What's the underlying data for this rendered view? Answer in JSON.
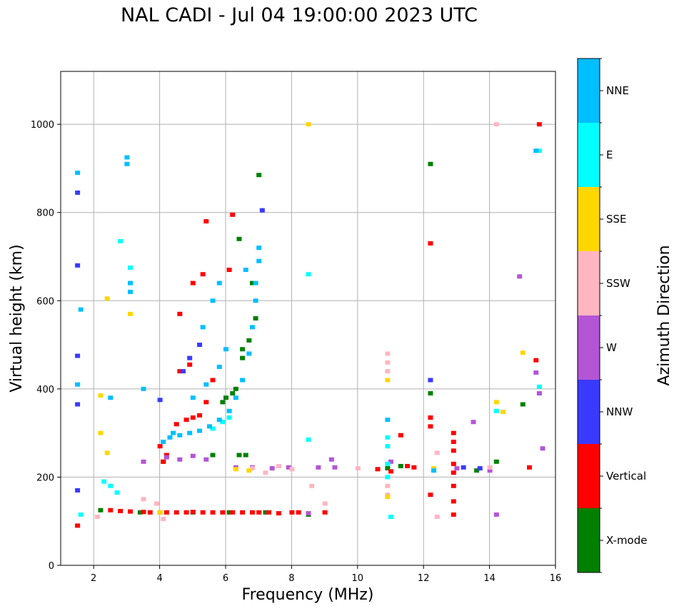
{
  "chart_data": {
    "type": "scatter",
    "title": "NAL CADI - Jul 04 19:00:00 2023 UTC",
    "xlabel": "Frequency (MHz)",
    "ylabel": "Virtual height (km)",
    "xlim": [
      1,
      16
    ],
    "ylim": [
      0,
      1120
    ],
    "xticks": [
      2,
      4,
      6,
      8,
      10,
      12,
      14,
      16
    ],
    "yticks": [
      0,
      200,
      400,
      600,
      800,
      1000
    ],
    "grid": true,
    "colorbar": {
      "label": "Azimuth Direction",
      "categories": [
        {
          "name": "X-mode",
          "color": "#008000"
        },
        {
          "name": "Vertical",
          "color": "#ff0000"
        },
        {
          "name": "NNW",
          "color": "#3a3aff"
        },
        {
          "name": "W",
          "color": "#b455d6"
        },
        {
          "name": "SSW",
          "color": "#ffb6c1"
        },
        {
          "name": "SSE",
          "color": "#ffd700"
        },
        {
          "name": "E",
          "color": "#00ffff"
        },
        {
          "name": "NNE",
          "color": "#00bfff"
        }
      ]
    },
    "series": [
      {
        "name": "X-mode",
        "points": [
          [
            2.2,
            125
          ],
          [
            3.4,
            120
          ],
          [
            4.1,
            235
          ],
          [
            5.0,
            120
          ],
          [
            5.6,
            250
          ],
          [
            5.9,
            370
          ],
          [
            6.0,
            380
          ],
          [
            6.1,
            120
          ],
          [
            6.2,
            390
          ],
          [
            6.3,
            400
          ],
          [
            6.4,
            250
          ],
          [
            6.4,
            740
          ],
          [
            6.5,
            490
          ],
          [
            6.5,
            470
          ],
          [
            6.6,
            250
          ],
          [
            6.7,
            510
          ],
          [
            6.8,
            640
          ],
          [
            6.9,
            560
          ],
          [
            7.0,
            885
          ],
          [
            7.2,
            120
          ],
          [
            8.5,
            115
          ],
          [
            10.9,
            220
          ],
          [
            11.3,
            225
          ],
          [
            12.2,
            910
          ],
          [
            12.2,
            390
          ],
          [
            13.6,
            215
          ],
          [
            14.2,
            235
          ],
          [
            15.0,
            365
          ]
        ]
      },
      {
        "name": "Vertical",
        "points": [
          [
            1.5,
            90
          ],
          [
            2.5,
            125
          ],
          [
            2.8,
            123
          ],
          [
            3.1,
            122
          ],
          [
            3.5,
            121
          ],
          [
            3.7,
            120
          ],
          [
            4.0,
            120
          ],
          [
            4.2,
            120
          ],
          [
            4.5,
            120
          ],
          [
            4.8,
            120
          ],
          [
            5.0,
            121
          ],
          [
            5.3,
            120
          ],
          [
            5.6,
            120
          ],
          [
            5.9,
            120
          ],
          [
            6.2,
            120
          ],
          [
            6.5,
            120
          ],
          [
            6.8,
            120
          ],
          [
            7.0,
            120
          ],
          [
            7.3,
            120
          ],
          [
            7.6,
            118
          ],
          [
            8.0,
            120
          ],
          [
            8.2,
            120
          ],
          [
            9.0,
            120
          ],
          [
            4.1,
            235
          ],
          [
            4.2,
            250
          ],
          [
            4.0,
            270
          ],
          [
            4.5,
            320
          ],
          [
            4.8,
            330
          ],
          [
            5.0,
            335
          ],
          [
            5.2,
            340
          ],
          [
            5.4,
            370
          ],
          [
            5.6,
            420
          ],
          [
            4.6,
            440
          ],
          [
            4.9,
            455
          ],
          [
            4.6,
            570
          ],
          [
            5.0,
            640
          ],
          [
            5.3,
            660
          ],
          [
            5.4,
            780
          ],
          [
            6.2,
            795
          ],
          [
            6.1,
            670
          ],
          [
            10.6,
            218
          ],
          [
            11.0,
            213
          ],
          [
            11.5,
            225
          ],
          [
            11.7,
            222
          ],
          [
            11.3,
            295
          ],
          [
            12.2,
            315
          ],
          [
            12.2,
            335
          ],
          [
            12.2,
            730
          ],
          [
            12.2,
            160
          ],
          [
            12.9,
            300
          ],
          [
            12.9,
            280
          ],
          [
            12.9,
            260
          ],
          [
            12.9,
            230
          ],
          [
            12.9,
            210
          ],
          [
            12.9,
            180
          ],
          [
            12.9,
            145
          ],
          [
            12.9,
            115
          ],
          [
            15.2,
            222
          ],
          [
            15.4,
            465
          ],
          [
            15.5,
            1000
          ]
        ]
      },
      {
        "name": "NNW",
        "points": [
          [
            1.5,
            170
          ],
          [
            1.5,
            365
          ],
          [
            1.5,
            475
          ],
          [
            1.5,
            680
          ],
          [
            1.5,
            845
          ],
          [
            4.0,
            375
          ],
          [
            4.7,
            440
          ],
          [
            4.9,
            470
          ],
          [
            5.2,
            500
          ],
          [
            7.1,
            805
          ],
          [
            12.2,
            420
          ],
          [
            13.2,
            222
          ],
          [
            13.7,
            220
          ]
        ]
      },
      {
        "name": "W",
        "points": [
          [
            3.5,
            235
          ],
          [
            4.2,
            245
          ],
          [
            4.6,
            240
          ],
          [
            5.0,
            248
          ],
          [
            5.4,
            240
          ],
          [
            6.3,
            222
          ],
          [
            6.8,
            222
          ],
          [
            7.4,
            220
          ],
          [
            7.9,
            222
          ],
          [
            8.5,
            118
          ],
          [
            8.8,
            222
          ],
          [
            9.2,
            240
          ],
          [
            9.3,
            222
          ],
          [
            11.0,
            235
          ],
          [
            13.0,
            220
          ],
          [
            13.5,
            325
          ],
          [
            14.0,
            215
          ],
          [
            14.2,
            115
          ],
          [
            14.9,
            655
          ],
          [
            15.4,
            437
          ],
          [
            15.5,
            390
          ],
          [
            15.6,
            265
          ]
        ]
      },
      {
        "name": "SSW",
        "points": [
          [
            2.1,
            110
          ],
          [
            3.5,
            150
          ],
          [
            3.9,
            140
          ],
          [
            4.1,
            105
          ],
          [
            6.8,
            220
          ],
          [
            7.2,
            210
          ],
          [
            7.6,
            225
          ],
          [
            8.0,
            218
          ],
          [
            8.6,
            180
          ],
          [
            9.0,
            140
          ],
          [
            10.0,
            220
          ],
          [
            10.9,
            480
          ],
          [
            10.9,
            460
          ],
          [
            10.9,
            440
          ],
          [
            10.9,
            180
          ],
          [
            10.9,
            160
          ],
          [
            12.4,
            255
          ],
          [
            12.4,
            110
          ],
          [
            14.0,
            222
          ],
          [
            14.2,
            1000
          ]
        ]
      },
      {
        "name": "SSE",
        "points": [
          [
            2.2,
            385
          ],
          [
            2.2,
            300
          ],
          [
            2.4,
            255
          ],
          [
            2.4,
            605
          ],
          [
            3.1,
            570
          ],
          [
            4.0,
            120
          ],
          [
            6.3,
            218
          ],
          [
            6.7,
            215
          ],
          [
            8.5,
            1000
          ],
          [
            10.9,
            420
          ],
          [
            10.9,
            155
          ],
          [
            12.3,
            220
          ],
          [
            14.2,
            370
          ],
          [
            14.4,
            348
          ],
          [
            15.0,
            482
          ]
        ]
      },
      {
        "name": "E",
        "points": [
          [
            1.6,
            115
          ],
          [
            2.3,
            190
          ],
          [
            2.5,
            180
          ],
          [
            2.7,
            165
          ],
          [
            2.8,
            735
          ],
          [
            3.1,
            675
          ],
          [
            5.6,
            310
          ],
          [
            5.9,
            325
          ],
          [
            6.1,
            335
          ],
          [
            8.5,
            660
          ],
          [
            8.5,
            285
          ],
          [
            10.9,
            230
          ],
          [
            10.9,
            200
          ],
          [
            10.9,
            270
          ],
          [
            10.9,
            290
          ],
          [
            11.0,
            110
          ],
          [
            14.2,
            350
          ],
          [
            15.5,
            405
          ],
          [
            15.5,
            940
          ]
        ]
      },
      {
        "name": "NNE",
        "points": [
          [
            1.5,
            890
          ],
          [
            1.5,
            410
          ],
          [
            1.6,
            580
          ],
          [
            2.5,
            380
          ],
          [
            3.0,
            925
          ],
          [
            3.0,
            910
          ],
          [
            3.1,
            640
          ],
          [
            3.1,
            620
          ],
          [
            3.5,
            400
          ],
          [
            4.1,
            280
          ],
          [
            4.3,
            290
          ],
          [
            4.6,
            295
          ],
          [
            4.9,
            300
          ],
          [
            5.2,
            305
          ],
          [
            5.5,
            315
          ],
          [
            5.8,
            330
          ],
          [
            6.1,
            350
          ],
          [
            6.3,
            380
          ],
          [
            6.5,
            420
          ],
          [
            6.7,
            480
          ],
          [
            6.8,
            540
          ],
          [
            6.9,
            600
          ],
          [
            6.9,
            640
          ],
          [
            7.0,
            690
          ],
          [
            7.0,
            720
          ],
          [
            5.0,
            380
          ],
          [
            5.4,
            410
          ],
          [
            5.8,
            450
          ],
          [
            6.0,
            490
          ],
          [
            5.3,
            540
          ],
          [
            5.6,
            600
          ],
          [
            5.8,
            640
          ],
          [
            6.6,
            670
          ],
          [
            4.4,
            300
          ],
          [
            10.9,
            330
          ],
          [
            12.3,
            215
          ],
          [
            15.4,
            940
          ]
        ]
      }
    ]
  }
}
